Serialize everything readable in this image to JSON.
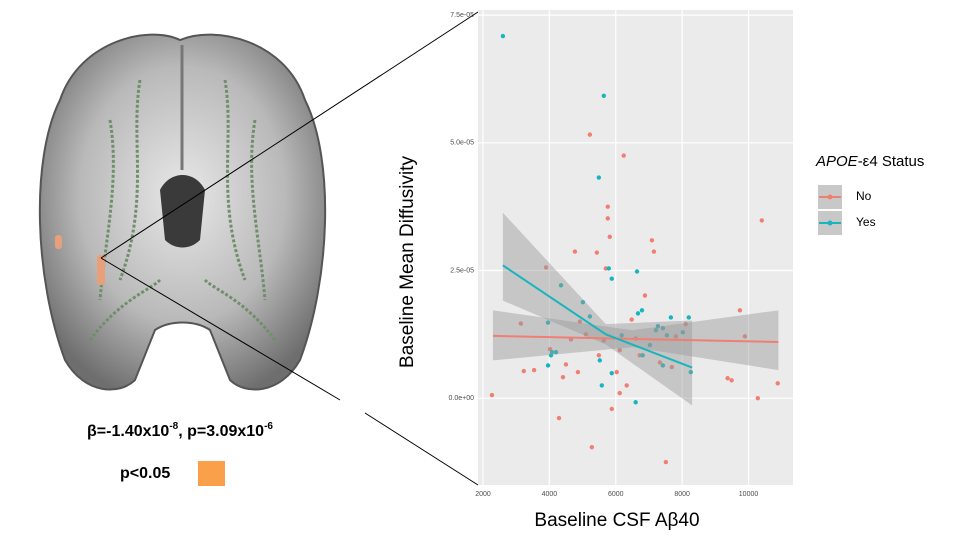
{
  "annotations": {
    "beta_text": "β=-1.40x10",
    "beta_exp": "-8",
    "p_text": ", p=3.09x10",
    "p_exp": "-6",
    "threshold": "p<0.05",
    "threshold_color": "#fba04a"
  },
  "chart_data": {
    "type": "scatter",
    "x_label": "Baseline CSF Aβ40",
    "y_label": "Baseline Mean Diffusivity",
    "legend_title_italic": "APOE",
    "legend_title_rest": "-ε4 Status",
    "xlim": [
      1850,
      11340
    ],
    "ylim": [
      -1.7e-05,
      7.6e-05
    ],
    "xticks": [
      2000,
      4000,
      6000,
      8000,
      10000
    ],
    "yticks": [
      {
        "value": 0,
        "label": "0.0e+00"
      },
      {
        "value": 2.5e-05,
        "label": "2.5e-05"
      },
      {
        "value": 5e-05,
        "label": "5.0e-05"
      },
      {
        "value": 7.5e-05,
        "label": "7.5e-05"
      }
    ],
    "grid": true,
    "series": [
      {
        "name": "No",
        "color": "#f07f73",
        "x": [
          2270,
          3140,
          3230,
          3540,
          4020,
          4290,
          4410,
          4500,
          3900,
          4770,
          4860,
          4920,
          5220,
          5280,
          5430,
          5490,
          5760,
          5760,
          5820,
          5700,
          5880,
          6030,
          6120,
          6240,
          6330,
          6480,
          6600,
          6720,
          6880,
          7090,
          7150,
          7330,
          7510,
          7690,
          7810,
          8110,
          9740,
          9890,
          10280,
          10400,
          10880,
          9370,
          9490,
          6120,
          5640,
          5100,
          4650
        ],
        "values": [
          6e-07,
          1.46e-05,
          5.3e-06,
          5.5e-06,
          9.6e-06,
          -3.9e-06,
          4.1e-06,
          6.6e-06,
          2.56e-05,
          2.87e-05,
          5.1e-06,
          1.5e-05,
          5.16e-05,
          -9.6e-06,
          2.85e-05,
          8.4e-06,
          3.75e-05,
          3.52e-05,
          3.16e-05,
          2.54e-05,
          -2.1e-06,
          5.1e-06,
          1e-06,
          4.75e-05,
          2.5e-06,
          1.54e-05,
          1.17e-05,
          8.4e-06,
          2.01e-05,
          3.09e-05,
          2.87e-05,
          7e-06,
          -1.25e-05,
          6.1e-06,
          1.21e-05,
          1.45e-05,
          1.72e-05,
          1.21e-05,
          0.0,
          3.48e-05,
          2.9e-06,
          3.9e-06,
          3.5e-06,
          9.4e-06,
          1.13e-05,
          1.25e-05,
          1.15e-05
        ],
        "fit": {
          "x": [
            2300,
            6500,
            10900
          ],
          "y": [
            1.22e-05,
            1.16e-05,
            1.1e-05
          ],
          "lower": [
            7.4e-06,
            1e-05,
            5.5e-06
          ],
          "upper": [
            1.72e-05,
            1.33e-05,
            1.72e-05
          ]
        }
      },
      {
        "name": "Yes",
        "color": "#17b5bd",
        "x": [
          2600,
          5640,
          5490,
          4350,
          3960,
          4050,
          4200,
          5010,
          5220,
          5790,
          5880,
          6640,
          6670,
          6790,
          7210,
          7270,
          7420,
          7540,
          7660,
          8200,
          8260,
          6180,
          5520,
          5580,
          6600,
          6810,
          7030,
          3960,
          4080,
          7420,
          8020,
          5880
        ],
        "values": [
          7.09e-05,
          5.92e-05,
          4.32e-05,
          2.21e-05,
          1.48e-05,
          8.4e-06,
          9e-06,
          1.88e-05,
          1.6e-05,
          2.54e-05,
          2.34e-05,
          2.48e-05,
          1.66e-05,
          1.72e-05,
          1.33e-05,
          1.41e-05,
          6.4e-06,
          1.23e-05,
          1.58e-05,
          1.58e-05,
          5.1e-06,
          1.23e-05,
          7.4e-06,
          2.5e-06,
          -8e-07,
          8.4e-06,
          1.04e-05,
          6.4e-06,
          9e-06,
          1.37e-05,
          1.29e-05,
          4.9e-06
        ],
        "fit": {
          "x": [
            2600,
            5700,
            8300
          ],
          "y": [
            2.6e-05,
            1.25e-05,
            6e-06
          ],
          "lower": [
            1.91e-05,
            1.05e-05,
            -1.4e-06
          ],
          "upper": [
            3.63e-05,
            1.45e-05,
            1.52e-05
          ]
        }
      }
    ]
  }
}
